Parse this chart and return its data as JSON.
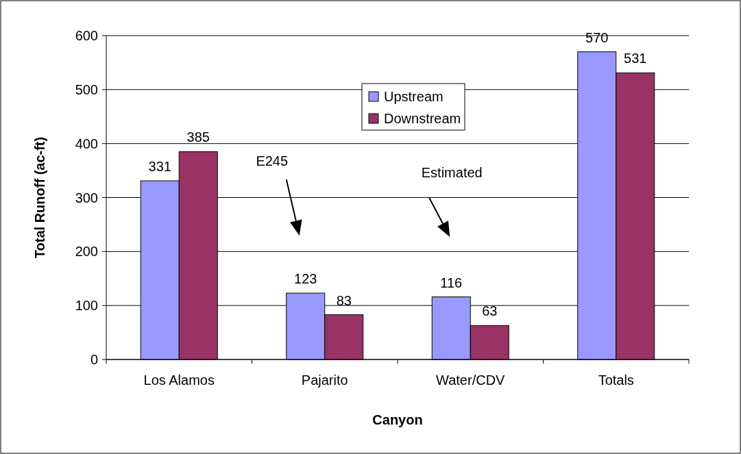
{
  "chart_data": {
    "type": "bar",
    "xlabel": "Canyon",
    "ylabel": "Total Runoff (ac-ft)",
    "categories": [
      "Los Alamos",
      "Pajarito",
      "Water/CDV",
      "Totals"
    ],
    "series": [
      {
        "name": "Upstream",
        "color": "#9999ff",
        "values": [
          331,
          123,
          116,
          570
        ]
      },
      {
        "name": "Downstream",
        "color": "#993366",
        "values": [
          385,
          83,
          63,
          531
        ]
      }
    ],
    "ylim": [
      0,
      600
    ],
    "yticks": [
      0,
      100,
      200,
      300,
      400,
      500,
      600
    ],
    "grid": "y",
    "legend": "top",
    "data_labels": true,
    "annotations": [
      "E245",
      "Estimated"
    ]
  }
}
